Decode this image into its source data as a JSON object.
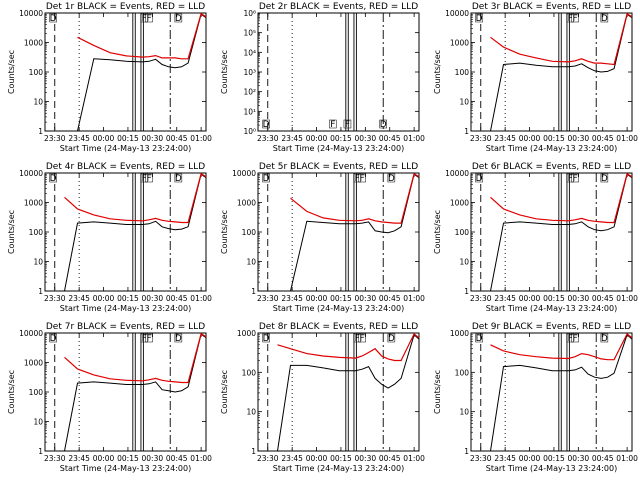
{
  "colors": {
    "events": "#000000",
    "lld": "#e00000",
    "background": "#ffffff"
  },
  "x_tick_labels": [
    "23:30",
    "23:45",
    "00:00",
    "00:15",
    "00:30",
    "00:45",
    "01:00"
  ],
  "xlabel": "Start Time (24-May-13 23:24:00)",
  "ylabel": "Counts/sec",
  "chart_data": [
    {
      "type": "line",
      "title": "Det 1r BLACK = Events, RED = LLD",
      "y_scale": "log",
      "ylim": [
        1,
        10000
      ],
      "y_tick_labels": [
        "1",
        "10",
        "100",
        "1000",
        "10000"
      ],
      "x_minutes": [
        0,
        4,
        8,
        12,
        20,
        30,
        40,
        50,
        60,
        64,
        68,
        72,
        76,
        80,
        84,
        88,
        96,
        99
      ],
      "series": [
        {
          "name": "BLACK = Events",
          "values": [
            null,
            null,
            null,
            null,
            1,
            280,
            260,
            230,
            220,
            230,
            270,
            180,
            150,
            140,
            150,
            200,
            9000,
            7000
          ]
        },
        {
          "name": "RED = LLD",
          "values": [
            null,
            null,
            null,
            null,
            1500,
            800,
            450,
            350,
            320,
            330,
            360,
            300,
            300,
            300,
            280,
            280,
            9500,
            7500
          ]
        }
      ],
      "markers": [
        {
          "x": 5,
          "label": "D"
        },
        {
          "x": 61,
          "label": "F"
        },
        {
          "x": 64,
          "label": "F"
        },
        {
          "x": 82,
          "label": "D"
        }
      ]
    },
    {
      "type": "line",
      "title": "Det 2r BLACK = Events, RED = LLD",
      "y_scale": "log",
      "ylim": [
        1,
        1000000
      ],
      "y_tick_labels": [
        "10⁰",
        "10¹",
        "10²",
        "10³",
        "10⁴",
        "10⁵",
        "10⁶"
      ],
      "x_minutes": [],
      "series": [],
      "markers": [
        {
          "x": 5,
          "label": "D"
        },
        {
          "x": 46,
          "label": "F"
        },
        {
          "x": 55,
          "label": "F"
        },
        {
          "x": 77,
          "label": "D"
        }
      ]
    },
    {
      "type": "line",
      "title": "Det 3r BLACK = Events, RED = LLD",
      "y_scale": "log",
      "ylim": [
        1,
        10000
      ],
      "y_tick_labels": [
        "1",
        "10",
        "100",
        "1000",
        "10000"
      ],
      "x_minutes": [
        0,
        4,
        8,
        12,
        20,
        30,
        40,
        50,
        60,
        64,
        68,
        72,
        76,
        80,
        84,
        88,
        96,
        99
      ],
      "series": [
        {
          "name": "BLACK = Events",
          "values": [
            null,
            null,
            null,
            1,
            180,
            200,
            170,
            150,
            150,
            160,
            190,
            140,
            110,
            100,
            105,
            130,
            9000,
            7000
          ]
        },
        {
          "name": "RED = LLD",
          "values": [
            null,
            null,
            null,
            1500,
            700,
            400,
            300,
            230,
            220,
            240,
            280,
            230,
            200,
            200,
            190,
            180,
            9500,
            7500
          ]
        }
      ],
      "markers": [
        {
          "x": 5,
          "label": "D"
        },
        {
          "x": 61,
          "label": "F"
        },
        {
          "x": 64,
          "label": "F"
        },
        {
          "x": 82,
          "label": "D"
        }
      ]
    },
    {
      "type": "line",
      "title": "Det 4r BLACK = Events, RED = LLD",
      "y_scale": "log",
      "ylim": [
        1,
        10000
      ],
      "y_tick_labels": [
        "1",
        "10",
        "100",
        "1000",
        "10000"
      ],
      "x_minutes": [
        0,
        4,
        8,
        12,
        20,
        30,
        40,
        50,
        60,
        64,
        68,
        72,
        76,
        80,
        84,
        88,
        96,
        99
      ],
      "series": [
        {
          "name": "BLACK = Events",
          "values": [
            null,
            null,
            null,
            1,
            200,
            220,
            200,
            180,
            180,
            190,
            230,
            150,
            130,
            120,
            125,
            150,
            9000,
            7000
          ]
        },
        {
          "name": "RED = LLD",
          "values": [
            null,
            null,
            null,
            1500,
            600,
            380,
            280,
            250,
            240,
            260,
            290,
            250,
            230,
            220,
            210,
            210,
            9500,
            7500
          ]
        }
      ],
      "markers": [
        {
          "x": 5,
          "label": "D"
        },
        {
          "x": 61,
          "label": "F"
        },
        {
          "x": 64,
          "label": "F"
        },
        {
          "x": 82,
          "label": "D"
        }
      ]
    },
    {
      "type": "line",
      "title": "Det 5r BLACK = Events, RED = LLD",
      "y_scale": "log",
      "ylim": [
        1,
        10000
      ],
      "y_tick_labels": [
        "1",
        "10",
        "100",
        "1000",
        "10000"
      ],
      "x_minutes": [
        0,
        4,
        8,
        12,
        20,
        30,
        40,
        50,
        60,
        64,
        68,
        72,
        76,
        80,
        84,
        88,
        96,
        99
      ],
      "series": [
        {
          "name": "BLACK = Events",
          "values": [
            null,
            null,
            null,
            null,
            1,
            230,
            210,
            190,
            190,
            200,
            220,
            110,
            100,
            95,
            110,
            150,
            9000,
            7000
          ]
        },
        {
          "name": "RED = LLD",
          "values": [
            null,
            null,
            null,
            null,
            1400,
            500,
            300,
            250,
            240,
            250,
            280,
            240,
            220,
            210,
            200,
            200,
            9500,
            7500
          ]
        }
      ],
      "markers": [
        {
          "x": 5,
          "label": "D"
        },
        {
          "x": 61,
          "label": "F"
        },
        {
          "x": 64,
          "label": "F"
        },
        {
          "x": 82,
          "label": "D"
        }
      ]
    },
    {
      "type": "line",
      "title": "Det 6r BLACK = Events, RED = LLD",
      "y_scale": "log",
      "ylim": [
        1,
        10000
      ],
      "y_tick_labels": [
        "1",
        "10",
        "100",
        "1000",
        "10000"
      ],
      "x_minutes": [
        0,
        4,
        8,
        12,
        20,
        30,
        40,
        50,
        60,
        64,
        68,
        72,
        76,
        80,
        84,
        88,
        96,
        99
      ],
      "series": [
        {
          "name": "BLACK = Events",
          "values": [
            null,
            null,
            null,
            1,
            200,
            220,
            200,
            180,
            180,
            190,
            220,
            150,
            120,
            110,
            120,
            150,
            9000,
            7000
          ]
        },
        {
          "name": "RED = LLD",
          "values": [
            null,
            null,
            null,
            1500,
            600,
            380,
            280,
            250,
            240,
            260,
            290,
            250,
            230,
            220,
            210,
            210,
            9500,
            7500
          ]
        }
      ],
      "markers": [
        {
          "x": 5,
          "label": "D"
        },
        {
          "x": 61,
          "label": "F"
        },
        {
          "x": 64,
          "label": "F"
        },
        {
          "x": 82,
          "label": "D"
        }
      ]
    },
    {
      "type": "line",
      "title": "Det 7r BLACK = Events, RED = LLD",
      "y_scale": "log",
      "ylim": [
        1,
        10000
      ],
      "y_tick_labels": [
        "1",
        "10",
        "100",
        "1000",
        "10000"
      ],
      "x_minutes": [
        0,
        4,
        8,
        12,
        20,
        30,
        40,
        50,
        60,
        64,
        68,
        72,
        76,
        80,
        84,
        88,
        96,
        99
      ],
      "series": [
        {
          "name": "BLACK = Events",
          "values": [
            null,
            null,
            null,
            1,
            200,
            220,
            200,
            180,
            180,
            190,
            220,
            120,
            110,
            100,
            110,
            150,
            9000,
            7000
          ]
        },
        {
          "name": "RED = LLD",
          "values": [
            null,
            null,
            null,
            1500,
            600,
            380,
            280,
            250,
            240,
            260,
            290,
            250,
            230,
            220,
            210,
            210,
            9500,
            7500
          ]
        }
      ],
      "markers": [
        {
          "x": 5,
          "label": "D"
        },
        {
          "x": 61,
          "label": "F"
        },
        {
          "x": 64,
          "label": "F"
        },
        {
          "x": 82,
          "label": "D"
        }
      ]
    },
    {
      "type": "line",
      "title": "Det 8r BLACK = Events, RED = LLD",
      "y_scale": "log",
      "ylim": [
        1,
        1000
      ],
      "y_tick_labels": [
        "1",
        "10",
        "100",
        "1000"
      ],
      "x_minutes": [
        0,
        4,
        8,
        12,
        20,
        30,
        40,
        50,
        60,
        64,
        68,
        72,
        76,
        80,
        84,
        88,
        96,
        99
      ],
      "series": [
        {
          "name": "BLACK = Events",
          "values": [
            null,
            null,
            null,
            1,
            150,
            150,
            130,
            110,
            110,
            120,
            140,
            70,
            50,
            40,
            50,
            70,
            900,
            700
          ]
        },
        {
          "name": "RED = LLD",
          "values": [
            null,
            null,
            null,
            500,
            400,
            300,
            260,
            240,
            230,
            260,
            320,
            400,
            260,
            220,
            200,
            200,
            950,
            750
          ]
        }
      ],
      "markers": [
        {
          "x": 5,
          "label": "D"
        },
        {
          "x": 61,
          "label": "F"
        },
        {
          "x": 64,
          "label": "F"
        },
        {
          "x": 82,
          "label": "D"
        }
      ]
    },
    {
      "type": "line",
      "title": "Det 9r BLACK = Events, RED = LLD",
      "y_scale": "log",
      "ylim": [
        1,
        1000
      ],
      "y_tick_labels": [
        "1",
        "10",
        "100",
        "1000"
      ],
      "x_minutes": [
        0,
        4,
        8,
        12,
        20,
        30,
        40,
        50,
        60,
        64,
        68,
        72,
        76,
        80,
        84,
        88,
        96,
        99
      ],
      "series": [
        {
          "name": "BLACK = Events",
          "values": [
            null,
            null,
            null,
            1,
            140,
            150,
            130,
            110,
            110,
            115,
            135,
            90,
            75,
            70,
            75,
            95,
            900,
            700
          ]
        },
        {
          "name": "RED = LLD",
          "values": [
            null,
            null,
            null,
            500,
            350,
            280,
            250,
            230,
            225,
            250,
            300,
            280,
            250,
            220,
            210,
            210,
            950,
            750
          ]
        }
      ],
      "markers": [
        {
          "x": 5,
          "label": "D"
        },
        {
          "x": 61,
          "label": "F"
        },
        {
          "x": 64,
          "label": "F"
        },
        {
          "x": 82,
          "label": "D"
        }
      ]
    }
  ]
}
